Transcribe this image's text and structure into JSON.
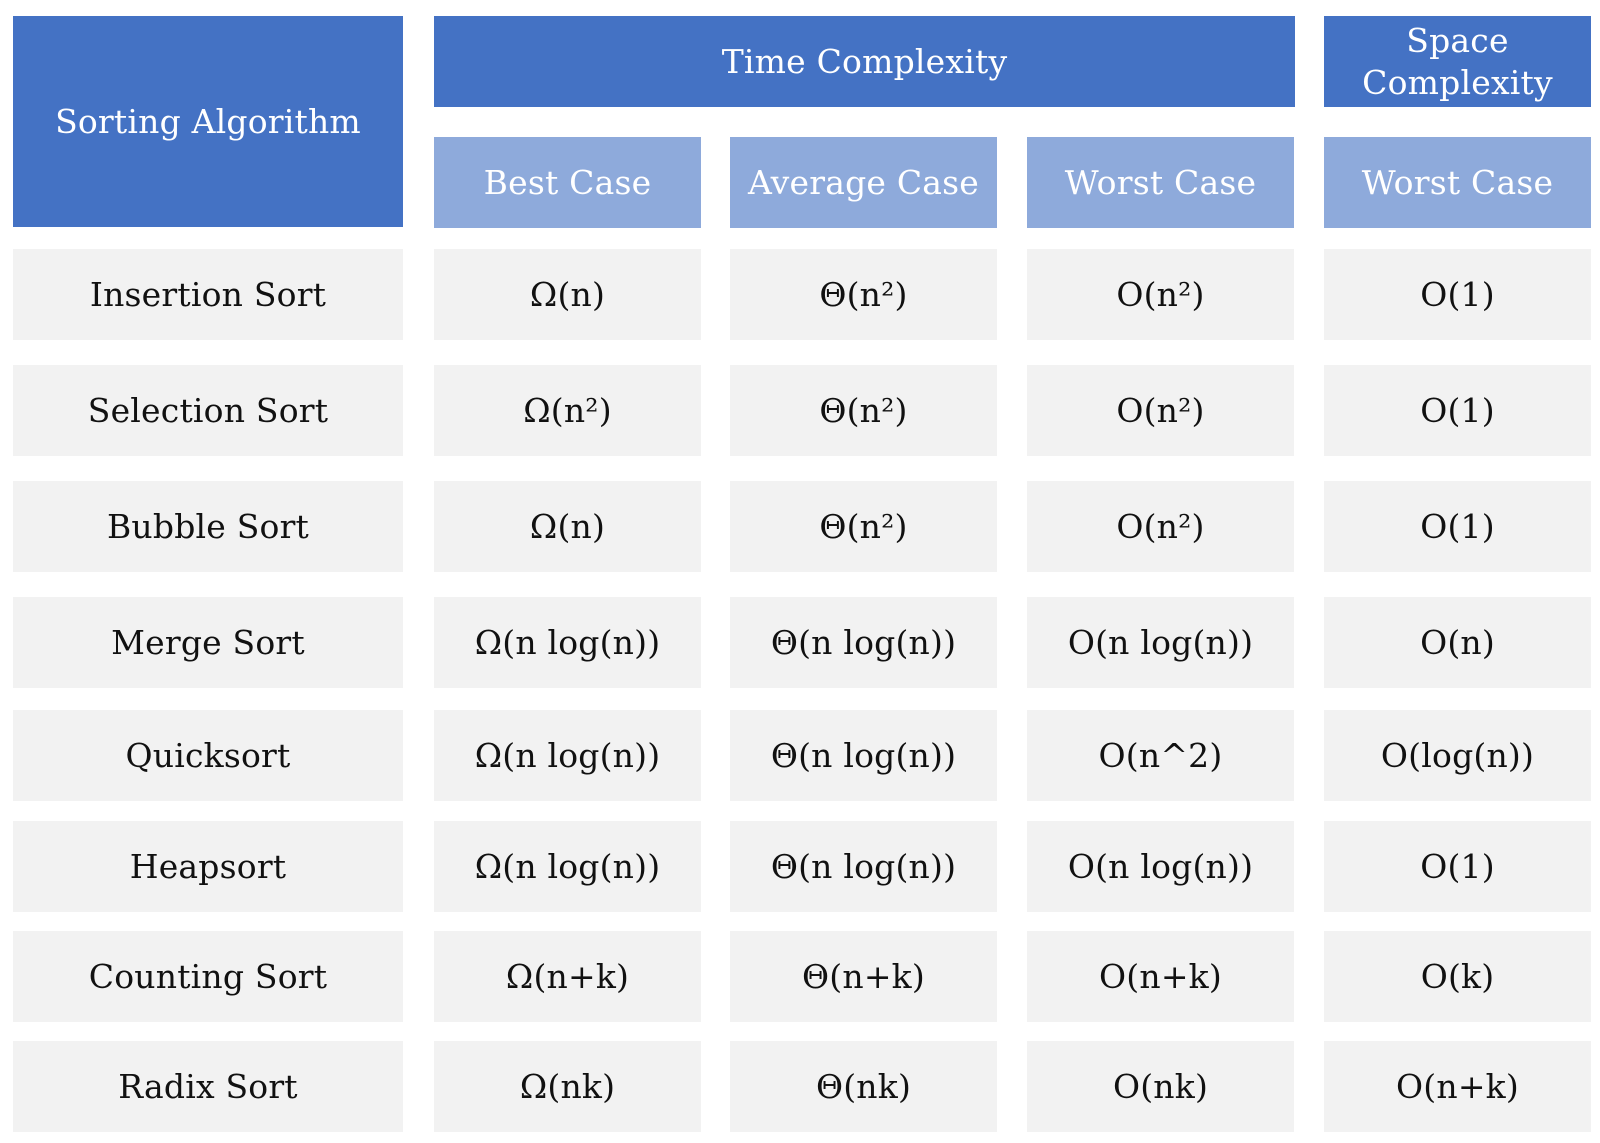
{
  "header": {
    "sorting_algorithm": "Sorting Algorithm",
    "time_complexity": "Time Complexity",
    "space_complexity": "Space Complexity",
    "best_case": "Best Case",
    "average_case": "Average Case",
    "worst_case_time": "Worst Case",
    "worst_case_space": "Worst Case"
  },
  "rows": [
    {
      "algorithm": "Insertion Sort",
      "best": "Ω(n)",
      "average": "Θ(n²)",
      "worst": "O(n²)",
      "space": "O(1)"
    },
    {
      "algorithm": "Selection Sort",
      "best": "Ω(n²)",
      "average": "Θ(n²)",
      "worst": "O(n²)",
      "space": "O(1)"
    },
    {
      "algorithm": "Bubble Sort",
      "best": "Ω(n)",
      "average": "Θ(n²)",
      "worst": "O(n²)",
      "space": "O(1)"
    },
    {
      "algorithm": "Merge Sort",
      "best": "Ω(n log(n))",
      "average": "Θ(n log(n))",
      "worst": "O(n log(n))",
      "space": "O(n)"
    },
    {
      "algorithm": "Quicksort",
      "best": "Ω(n log(n))",
      "average": "Θ(n log(n))",
      "worst": "O(n^2)",
      "space": "O(log(n))"
    },
    {
      "algorithm": "Heapsort",
      "best": "Ω(n log(n))",
      "average": "Θ(n log(n))",
      "worst": "O(n log(n))",
      "space": "O(1)"
    },
    {
      "algorithm": "Counting Sort",
      "best": "Ω(n+k)",
      "average": "Θ(n+k)",
      "worst": "O(n+k)",
      "space": "O(k)"
    },
    {
      "algorithm": "Radix Sort",
      "best": "Ω(nk)",
      "average": "Θ(nk)",
      "worst": "O(nk)",
      "space": "O(n+k)"
    }
  ],
  "colors": {
    "header_dark": "#4472c4",
    "header_light": "#8eaadb",
    "body_cell": "#f2f2f2"
  }
}
